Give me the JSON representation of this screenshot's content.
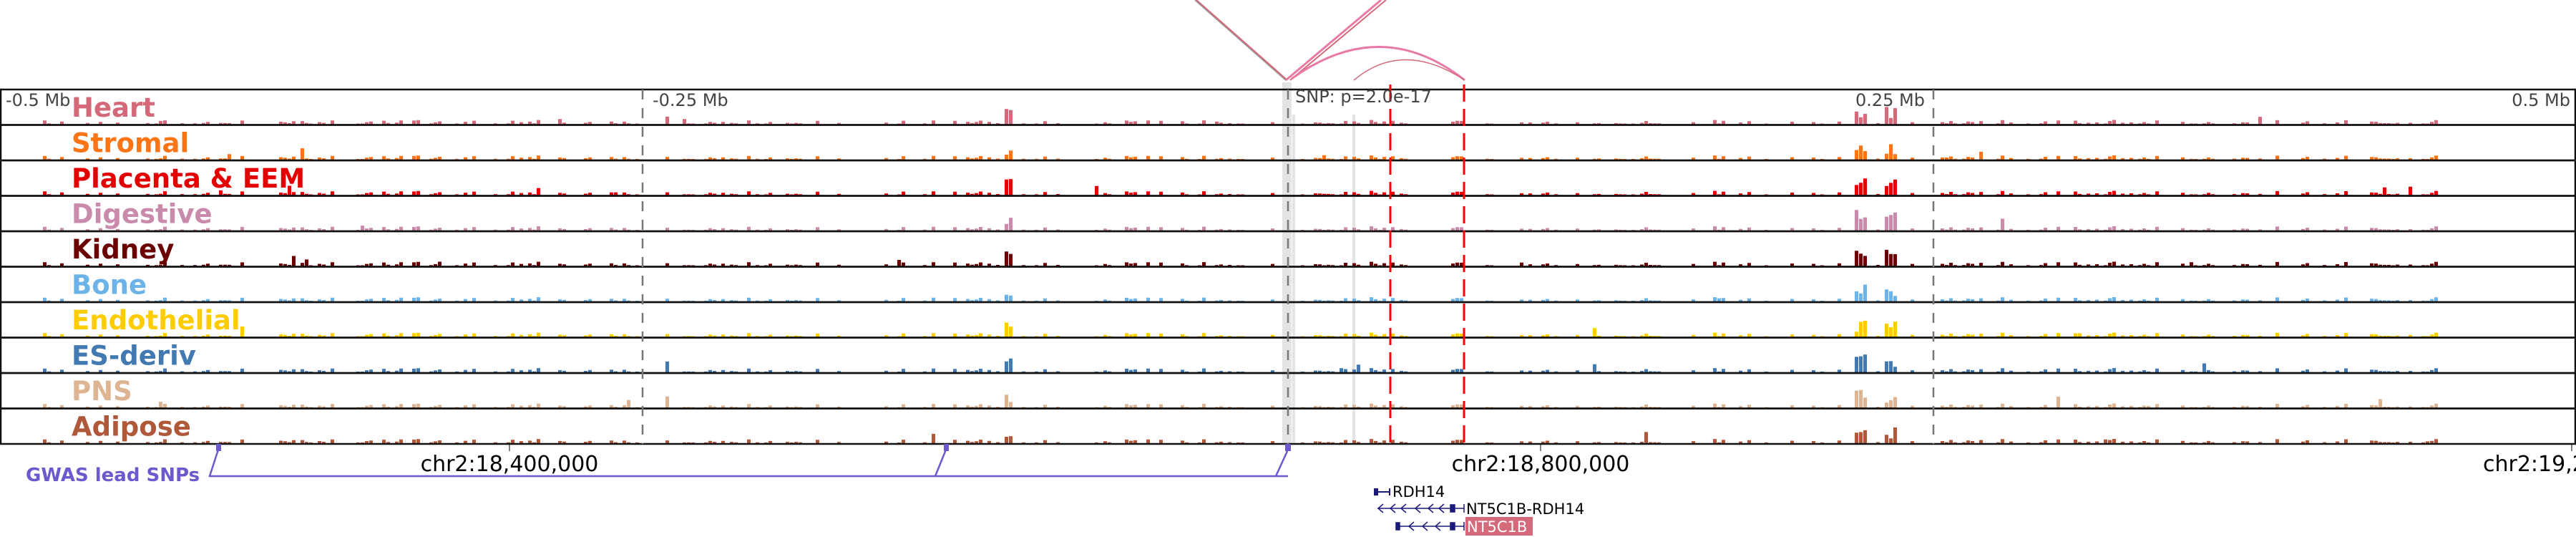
{
  "tracks": [
    {
      "label": "Heart",
      "color": "#d4697a"
    },
    {
      "label": "Stromal",
      "color": "#fb7516"
    },
    {
      "label": "Placenta & EEM",
      "color": "#e30000"
    },
    {
      "label": "Digestive",
      "color": "#c98aab"
    },
    {
      "label": "Kidney",
      "color": "#6b0000"
    },
    {
      "label": "Bone",
      "color": "#6cb4e8"
    },
    {
      "label": "Endothelial",
      "color": "#ffcc00"
    },
    {
      "label": "ES-deriv",
      "color": "#4279b0"
    },
    {
      "label": "PNS",
      "color": "#deb592"
    },
    {
      "label": "Adipose",
      "color": "#b0593a"
    }
  ],
  "axis": {
    "left": "-0.5 Mb",
    "mid_left": "-0.25 Mb",
    "mid_right": "0.25 Mb",
    "right": "0.5 Mb",
    "snp": "SNP: p=2.0e-17"
  },
  "coordinates": [
    "chr2:18,400,000",
    "chr2:18,800,000",
    "chr2:19,2"
  ],
  "gwas": {
    "label": "GWAS lead SNPs",
    "color": "#6a5acd"
  },
  "genes": [
    {
      "name": "RDH14",
      "highlight": false
    },
    {
      "name": "NT5C1B-RDH14",
      "highlight": false
    },
    {
      "name": "NT5C1B",
      "highlight": true
    }
  ],
  "colors": {
    "arc": "#e87aa6",
    "highlight_red": "#ff0000",
    "gene_blue": "#1a1a7a",
    "gene_highlight": "#d4697a"
  }
}
